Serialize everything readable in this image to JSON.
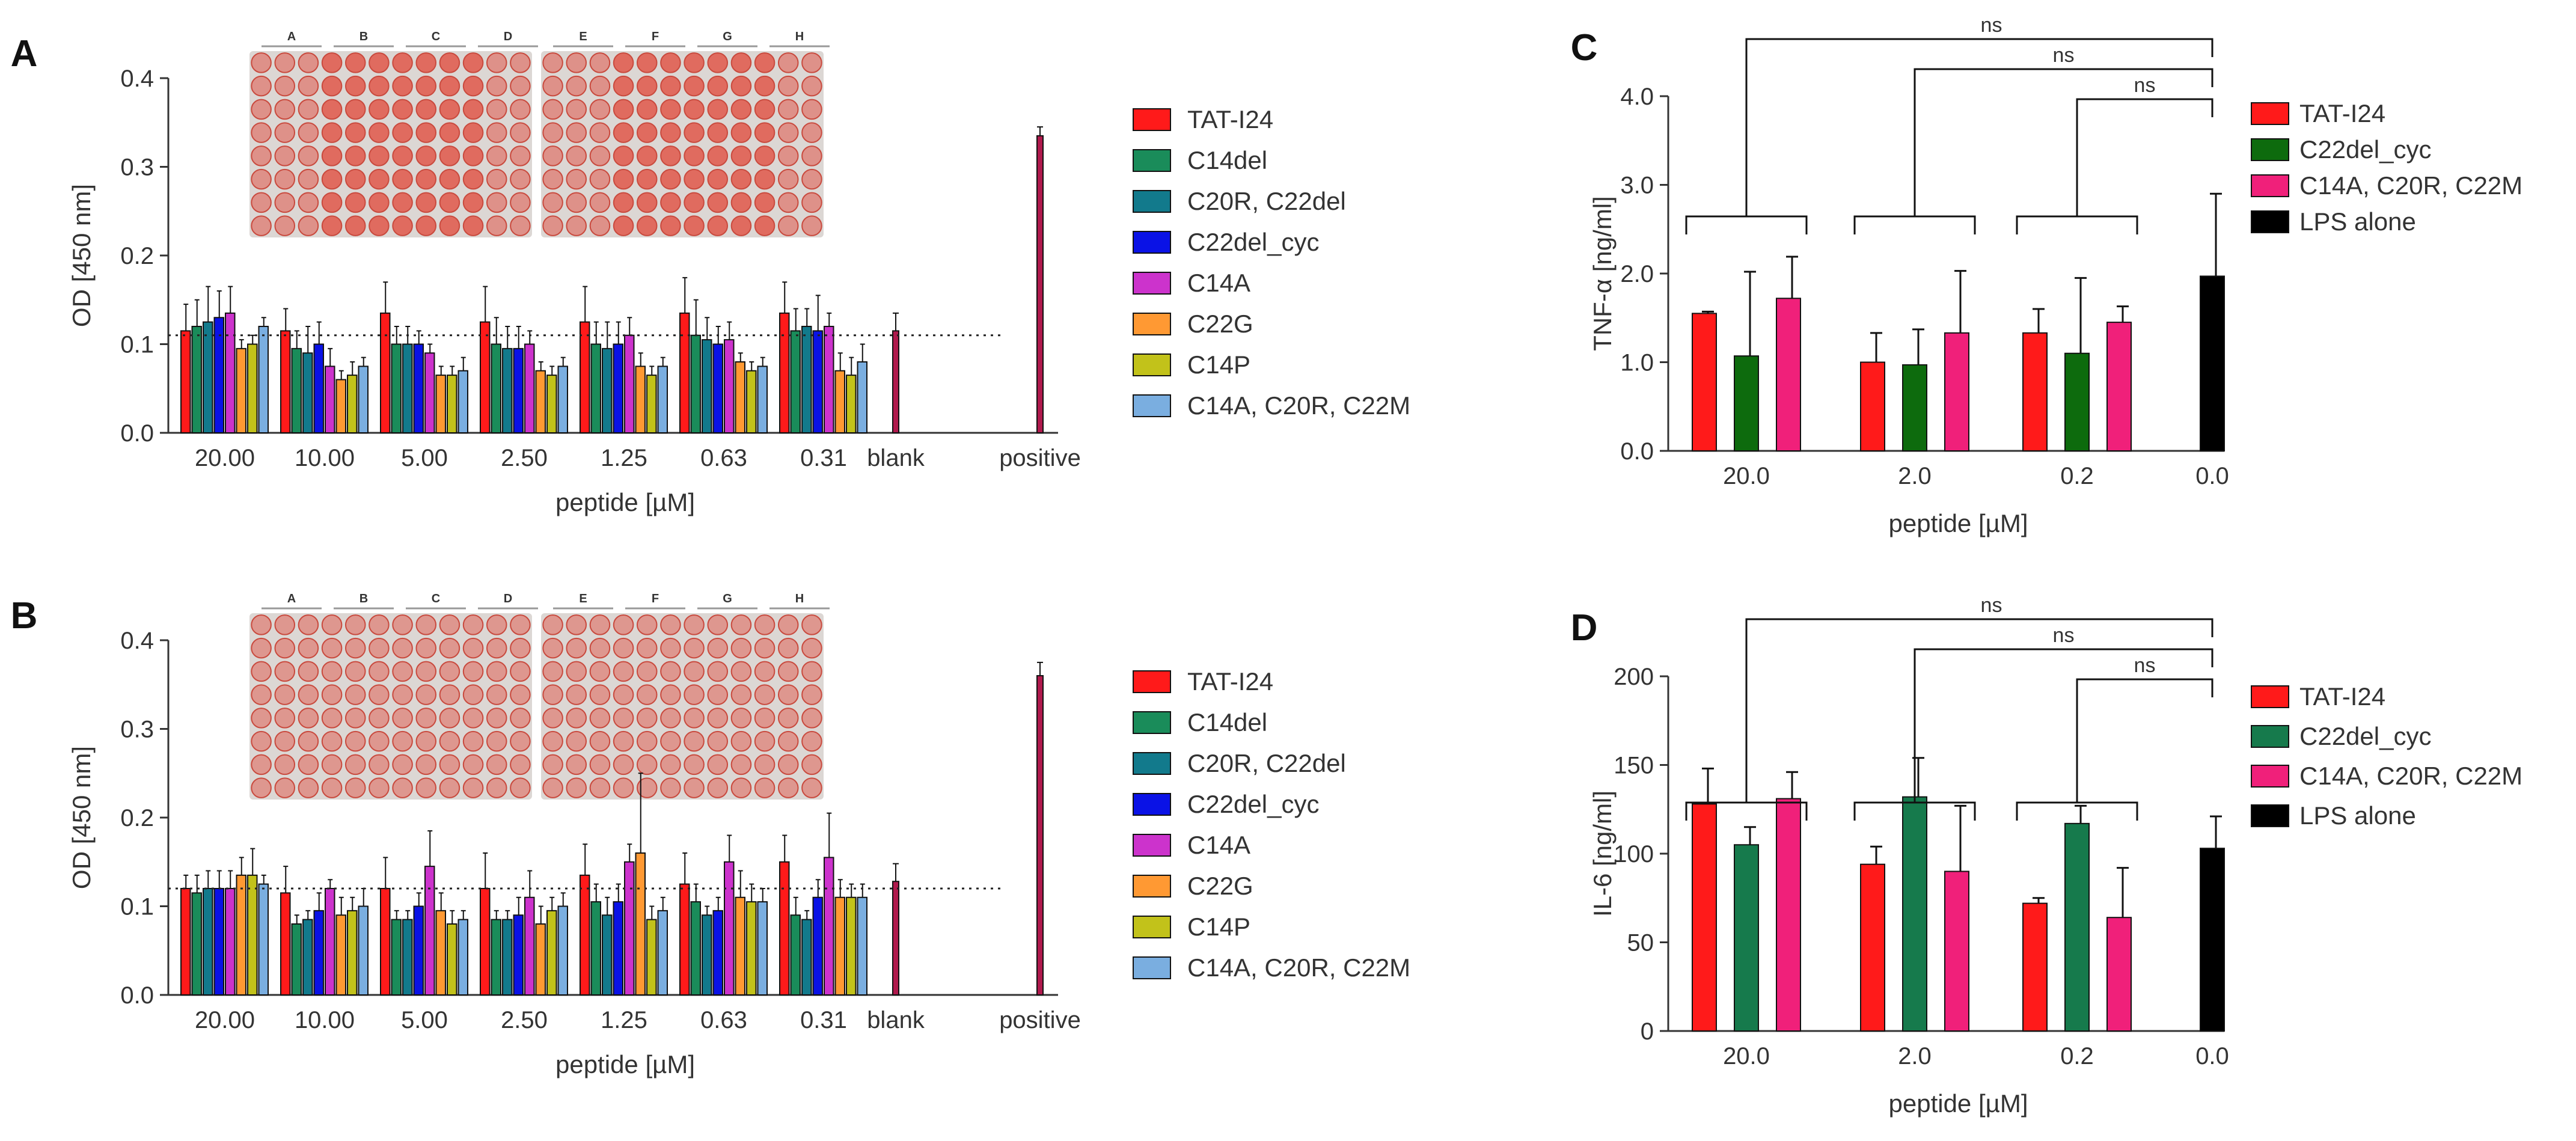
{
  "colors": {
    "TAT-I24": "#ff1a1a",
    "C14del": "#1a8c5a",
    "C20R, C22del": "#127a8c",
    "C22del_cyc": "#0a12e6",
    "C14A": "#cc33cc",
    "C22G": "#ff9933",
    "C14P": "#c2c21a",
    "C14A, C20R, C22M": "#7aaee0",
    "C22del_cyc_C": "#0d6b0d",
    "C22del_cyc_D": "#167a4c",
    "C14A, C20R, C22M_CD": "#f0207a",
    "LPS alone": "#000000",
    "blank_positive": "#b01a4d"
  },
  "panel_letters": [
    "A",
    "B",
    "C",
    "D"
  ],
  "plate_columns": [
    "A",
    "B",
    "C",
    "D",
    "E",
    "F",
    "G",
    "H"
  ],
  "chart_data": [
    {
      "id": "A",
      "type": "bar",
      "title": "",
      "xlabel": "peptide [µM]",
      "ylabel": "OD [450 nm]",
      "ylim": [
        0,
        0.4
      ],
      "yticks": [
        "0.0",
        "0.1",
        "0.2",
        "0.3",
        "0.4"
      ],
      "categories": [
        "20.00",
        "10.00",
        "5.00",
        "2.50",
        "1.25",
        "0.63",
        "0.31",
        "blank",
        "positive"
      ],
      "legend": [
        "TAT-I24",
        "C14del",
        "C20R, C22del",
        "C22del_cyc",
        "C14A",
        "C22G",
        "C14P",
        "C14A, C20R, C22M"
      ],
      "series": [
        {
          "name": "TAT-I24",
          "values": [
            0.115,
            0.115,
            0.135,
            0.125,
            0.125,
            0.135,
            0.135,
            null,
            null
          ],
          "errors": [
            0.03,
            0.025,
            0.035,
            0.04,
            0.04,
            0.04,
            0.035,
            null,
            null
          ]
        },
        {
          "name": "C14del",
          "values": [
            0.12,
            0.095,
            0.1,
            0.1,
            0.1,
            0.11,
            0.115,
            null,
            null
          ],
          "errors": [
            0.03,
            0.02,
            0.02,
            0.03,
            0.025,
            0.04,
            0.025,
            null,
            null
          ]
        },
        {
          "name": "C20R, C22del",
          "values": [
            0.125,
            0.09,
            0.1,
            0.095,
            0.095,
            0.105,
            0.12,
            null,
            null
          ],
          "errors": [
            0.04,
            0.03,
            0.02,
            0.025,
            0.03,
            0.025,
            0.02,
            null,
            null
          ]
        },
        {
          "name": "C22del_cyc",
          "values": [
            0.13,
            0.1,
            0.1,
            0.095,
            0.1,
            0.1,
            0.115,
            null,
            null
          ],
          "errors": [
            0.03,
            0.025,
            0.015,
            0.025,
            0.025,
            0.02,
            0.04,
            null,
            null
          ]
        },
        {
          "name": "C14A",
          "values": [
            0.135,
            0.075,
            0.09,
            0.1,
            0.11,
            0.105,
            0.12,
            null,
            null
          ],
          "errors": [
            0.03,
            0.02,
            0.01,
            0.015,
            0.02,
            0.02,
            0.015,
            null,
            null
          ]
        },
        {
          "name": "C22G",
          "values": [
            0.095,
            0.06,
            0.065,
            0.07,
            0.075,
            0.08,
            0.07,
            null,
            null
          ],
          "errors": [
            0.01,
            0.01,
            0.01,
            0.01,
            0.015,
            0.01,
            0.02,
            null,
            null
          ]
        },
        {
          "name": "C14P",
          "values": [
            0.1,
            0.065,
            0.065,
            0.065,
            0.065,
            0.07,
            0.065,
            null,
            null
          ],
          "errors": [
            0.01,
            0.015,
            0.01,
            0.01,
            0.01,
            0.01,
            0.02,
            null,
            null
          ]
        },
        {
          "name": "C14A, C20R, C22M",
          "values": [
            0.12,
            0.075,
            0.07,
            0.075,
            0.075,
            0.075,
            0.08,
            null,
            null
          ],
          "errors": [
            0.01,
            0.01,
            0.015,
            0.01,
            0.01,
            0.01,
            0.02,
            null,
            null
          ]
        }
      ],
      "single_bars": [
        {
          "category": "blank",
          "value": 0.115,
          "error": 0.02
        },
        {
          "category": "positive",
          "value": 0.335,
          "error": 0.01
        }
      ],
      "reference_line": 0.11
    },
    {
      "id": "B",
      "type": "bar",
      "title": "",
      "xlabel": "peptide [µM]",
      "ylabel": "OD [450 nm]",
      "ylim": [
        0,
        0.4
      ],
      "yticks": [
        "0.0",
        "0.1",
        "0.2",
        "0.3",
        "0.4"
      ],
      "categories": [
        "20.00",
        "10.00",
        "5.00",
        "2.50",
        "1.25",
        "0.63",
        "0.31",
        "blank",
        "positive"
      ],
      "legend": [
        "TAT-I24",
        "C14del",
        "C20R, C22del",
        "C22del_cyc",
        "C14A",
        "C22G",
        "C14P",
        "C14A, C20R, C22M"
      ],
      "series": [
        {
          "name": "TAT-I24",
          "values": [
            0.12,
            0.115,
            0.12,
            0.12,
            0.135,
            0.125,
            0.15,
            null,
            null
          ],
          "errors": [
            0.015,
            0.03,
            0.035,
            0.04,
            0.035,
            0.035,
            0.03,
            null,
            null
          ]
        },
        {
          "name": "C14del",
          "values": [
            0.115,
            0.08,
            0.085,
            0.085,
            0.105,
            0.105,
            0.09,
            null,
            null
          ],
          "errors": [
            0.02,
            0.01,
            0.01,
            0.01,
            0.02,
            0.02,
            0.02,
            null,
            null
          ]
        },
        {
          "name": "C20R, C22del",
          "values": [
            0.12,
            0.085,
            0.085,
            0.085,
            0.09,
            0.09,
            0.085,
            null,
            null
          ],
          "errors": [
            0.02,
            0.01,
            0.01,
            0.01,
            0.02,
            0.01,
            0.01,
            null,
            null
          ]
        },
        {
          "name": "C22del_cyc",
          "values": [
            0.12,
            0.095,
            0.1,
            0.09,
            0.105,
            0.095,
            0.11,
            null,
            null
          ],
          "errors": [
            0.02,
            0.02,
            0.015,
            0.02,
            0.02,
            0.015,
            0.02,
            null,
            null
          ]
        },
        {
          "name": "C14A",
          "values": [
            0.12,
            0.12,
            0.145,
            0.11,
            0.15,
            0.15,
            0.155,
            null,
            null
          ],
          "errors": [
            0.02,
            0.01,
            0.04,
            0.03,
            0.02,
            0.03,
            0.05,
            null,
            null
          ]
        },
        {
          "name": "C22G",
          "values": [
            0.135,
            0.09,
            0.095,
            0.08,
            0.16,
            0.11,
            0.11,
            null,
            null
          ],
          "errors": [
            0.02,
            0.02,
            0.02,
            0.02,
            0.09,
            0.03,
            0.02,
            null,
            null
          ]
        },
        {
          "name": "C14P",
          "values": [
            0.135,
            0.095,
            0.08,
            0.095,
            0.085,
            0.105,
            0.11,
            null,
            null
          ],
          "errors": [
            0.03,
            0.015,
            0.015,
            0.015,
            0.015,
            0.02,
            0.015,
            null,
            null
          ]
        },
        {
          "name": "C14A, C20R, C22M",
          "values": [
            0.125,
            0.1,
            0.085,
            0.1,
            0.095,
            0.105,
            0.11,
            null,
            null
          ],
          "errors": [
            0.01,
            0.02,
            0.01,
            0.015,
            0.015,
            0.015,
            0.015,
            null,
            null
          ]
        }
      ],
      "single_bars": [
        {
          "category": "blank",
          "value": 0.128,
          "error": 0.02
        },
        {
          "category": "positive",
          "value": 0.36,
          "error": 0.015
        }
      ],
      "reference_line": 0.12
    },
    {
      "id": "C",
      "type": "bar",
      "title": "",
      "xlabel": "peptide [µM]",
      "ylabel": "TNF-α [ng/ml]",
      "ylim": [
        0,
        4.0
      ],
      "yticks": [
        "0.0",
        "1.0",
        "2.0",
        "3.0",
        "4.0"
      ],
      "categories": [
        "20.0",
        "2.0",
        "0.2",
        "0.0"
      ],
      "legend": [
        "TAT-I24",
        "C22del_cyc",
        "C14A, C20R, C22M",
        "LPS alone"
      ],
      "series": [
        {
          "name": "TAT-I24",
          "values": [
            1.55,
            1.0,
            1.33,
            null
          ],
          "errors": [
            0.02,
            0.33,
            0.27,
            null
          ]
        },
        {
          "name": "C22del_cyc",
          "values": [
            1.07,
            0.97,
            1.1,
            null
          ],
          "errors": [
            0.95,
            0.4,
            0.85,
            null
          ]
        },
        {
          "name": "C14A, C20R, C22M",
          "values": [
            1.72,
            1.33,
            1.45,
            null
          ],
          "errors": [
            0.47,
            0.7,
            0.18,
            null
          ]
        },
        {
          "name": "LPS alone",
          "values": [
            null,
            null,
            null,
            1.97
          ],
          "errors": [
            null,
            null,
            null,
            0.93
          ]
        }
      ],
      "significance": [
        "ns",
        "ns",
        "ns"
      ]
    },
    {
      "id": "D",
      "type": "bar",
      "title": "",
      "xlabel": "peptide [µM]",
      "ylabel": "IL-6 [ng/ml]",
      "ylim": [
        0,
        200
      ],
      "yticks": [
        "0",
        "50",
        "100",
        "150",
        "200"
      ],
      "categories": [
        "20.0",
        "2.0",
        "0.2",
        "0.0"
      ],
      "legend": [
        "TAT-I24",
        "C22del_cyc",
        "C14A, C20R, C22M",
        "LPS alone"
      ],
      "series": [
        {
          "name": "TAT-I24",
          "values": [
            128,
            94,
            72,
            null
          ],
          "errors": [
            20,
            10,
            3,
            null
          ]
        },
        {
          "name": "C22del_cyc",
          "values": [
            105,
            132,
            117,
            null
          ],
          "errors": [
            10,
            22,
            10,
            null
          ]
        },
        {
          "name": "C14A, C20R, C22M",
          "values": [
            131,
            90,
            64,
            null
          ],
          "errors": [
            15,
            37,
            28,
            null
          ]
        },
        {
          "name": "LPS alone",
          "values": [
            null,
            null,
            null,
            103
          ],
          "errors": [
            null,
            null,
            null,
            18
          ]
        }
      ],
      "significance": [
        "ns",
        "ns",
        "ns"
      ]
    }
  ]
}
